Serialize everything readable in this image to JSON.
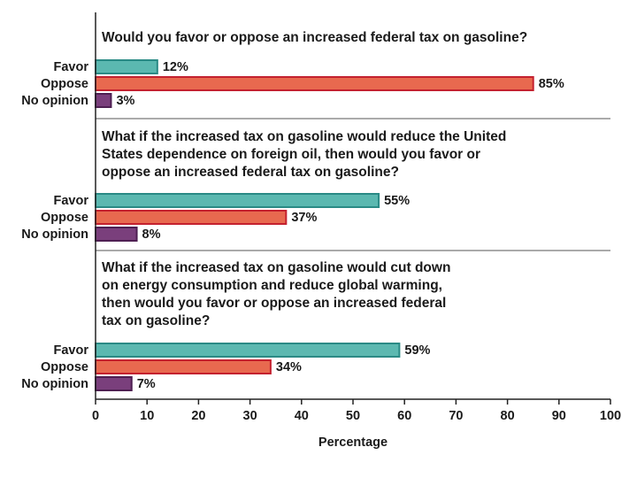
{
  "chart_data": {
    "type": "bar",
    "orientation": "horizontal",
    "xlabel": "Percentage",
    "xlim": [
      0,
      100
    ],
    "xticks": [
      0,
      10,
      20,
      30,
      40,
      50,
      60,
      70,
      80,
      90,
      100
    ],
    "grid": false,
    "categories": [
      "Favor",
      "Oppose",
      "No opinion"
    ],
    "colors": {
      "Favor": "#5bb8b0",
      "Oppose": "#e8694f",
      "No opinion": "#7a3f7c"
    },
    "edge_colors": {
      "Favor": "#2a8a85",
      "Oppose": "#c4212f",
      "No opinion": "#4e1f52"
    },
    "panels": [
      {
        "question": [
          "Would you favor or oppose an increased federal  tax on gasoline?"
        ],
        "values": [
          12,
          85,
          3
        ],
        "labels": [
          "12%",
          "85%",
          "3%"
        ]
      },
      {
        "question": [
          "What if the increased tax on gasoline would reduce the United",
          "States dependence on foreign oil, then would you favor or",
          "oppose an increased federal tax on gasoline?"
        ],
        "values": [
          55,
          37,
          8
        ],
        "labels": [
          "55%",
          "37%",
          "8%"
        ]
      },
      {
        "question": [
          "What if the increased tax on gasoline would cut down",
          "on energy consumption and reduce global warming,",
          "then would you favor or oppose an increased federal",
          "tax on gasoline?"
        ],
        "values": [
          59,
          34,
          7
        ],
        "labels": [
          "59%",
          "34%",
          "7%"
        ]
      }
    ]
  }
}
